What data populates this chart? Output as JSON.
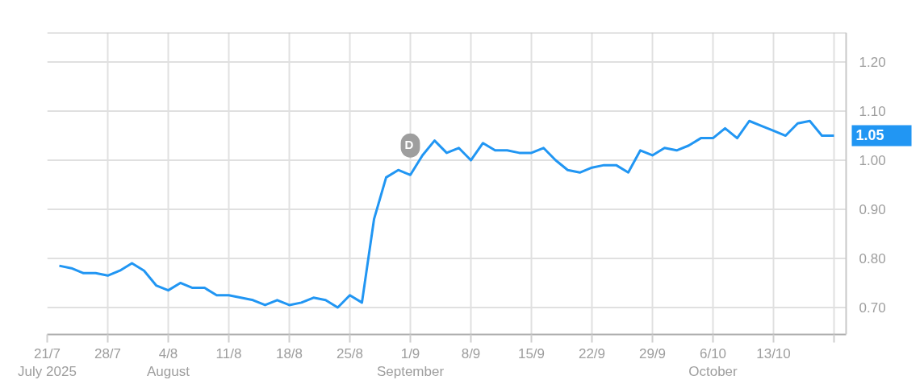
{
  "chart_data": {
    "type": "line",
    "categories": [
      "21/7\nJuly 2025",
      null,
      null,
      null,
      null,
      "28/7",
      null,
      null,
      null,
      null,
      "4/8\nAugust",
      null,
      null,
      null,
      null,
      "11/8",
      null,
      null,
      null,
      null,
      "18/8",
      null,
      null,
      null,
      null,
      "25/8",
      null,
      null,
      null,
      null,
      "1/9\nSeptember",
      null,
      null,
      null,
      null,
      "8/9",
      null,
      null,
      null,
      null,
      "15/9",
      null,
      null,
      null,
      null,
      "22/9",
      null,
      null,
      null,
      null,
      "29/9",
      null,
      null,
      null,
      null,
      "6/10\nOctober",
      null,
      null,
      null,
      null,
      "13/10",
      null,
      null,
      null,
      null,
      null
    ],
    "series": [
      {
        "color": "#2196f3",
        "values": [
          null,
          0.785,
          0.78,
          0.77,
          0.77,
          0.765,
          0.775,
          0.79,
          0.775,
          0.745,
          0.735,
          0.75,
          0.74,
          0.74,
          0.725,
          0.725,
          0.72,
          0.715,
          0.705,
          0.715,
          0.705,
          0.71,
          0.72,
          0.715,
          0.7,
          0.725,
          0.71,
          0.88,
          0.965,
          0.98,
          0.97,
          1.01,
          1.04,
          1.015,
          1.025,
          1.0,
          1.035,
          1.02,
          1.02,
          1.015,
          1.015,
          1.025,
          1.0,
          0.98,
          0.975,
          0.985,
          0.99,
          0.99,
          0.975,
          1.02,
          1.01,
          1.025,
          1.02,
          1.03,
          1.045,
          1.045,
          1.065,
          1.045,
          1.08,
          1.07,
          1.06,
          1.05,
          1.075,
          1.08,
          1.05,
          1.05
        ],
        "value_labels": [
          null,
          null,
          null,
          null,
          null,
          null,
          null,
          null,
          null,
          null,
          null,
          null,
          null,
          null,
          null,
          null,
          null,
          null,
          null,
          null,
          null,
          null,
          null,
          null,
          null,
          null,
          null,
          null,
          null,
          null,
          null,
          null,
          null,
          null,
          null,
          null,
          null,
          null,
          null,
          null,
          null,
          null,
          null,
          null,
          null,
          null,
          null,
          null,
          null,
          null,
          null,
          null,
          null,
          null,
          null,
          null,
          null,
          null,
          null,
          null,
          null,
          null,
          null,
          null,
          null,
          "1.05"
        ]
      }
    ],
    "ylim": [
      0.645,
      1.26
    ],
    "yticks": [
      {
        "value": 0.7,
        "label": "0.70"
      },
      {
        "value": 0.8,
        "label": "0.80"
      },
      {
        "value": 0.9,
        "label": "0.90"
      },
      {
        "value": 1.0,
        "label": "1.00"
      },
      {
        "value": 1.1,
        "label": "1.10"
      },
      {
        "value": 1.2,
        "label": "1.20"
      }
    ],
    "grid": true,
    "annotations": [
      {
        "text": "D",
        "x": "1/9\nSeptember",
        "y": 1.03
      }
    ]
  }
}
